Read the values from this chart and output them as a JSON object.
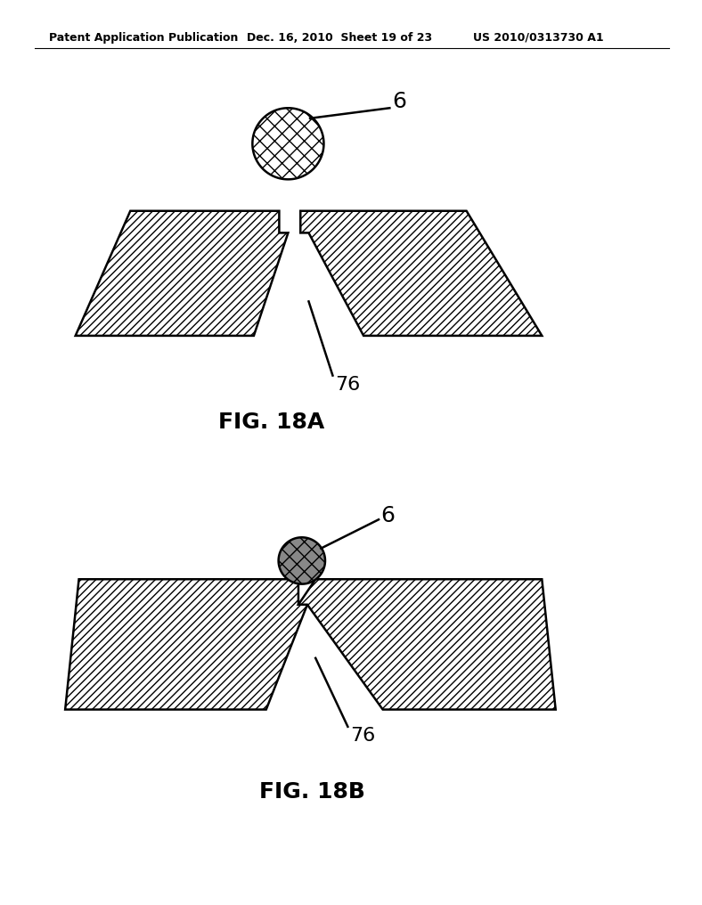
{
  "header_left": "Patent Application Publication",
  "header_mid": "Dec. 16, 2010  Sheet 19 of 23",
  "header_right": "US 2010/0313730 A1",
  "fig18a_label": "FIG. 18A",
  "fig18b_label": "FIG. 18B",
  "label_6_top": "6",
  "label_76_a": "76",
  "label_6_b": "6",
  "label_76_b": "76",
  "bg_color": "#ffffff",
  "line_color": "#000000"
}
